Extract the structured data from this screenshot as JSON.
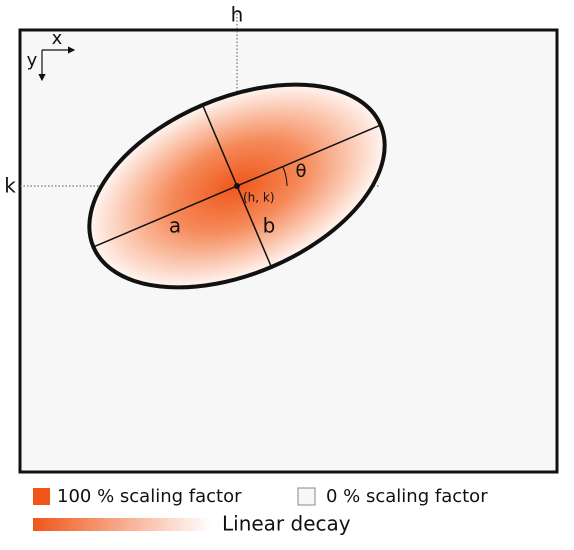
{
  "diagram": {
    "labels": {
      "h": "h",
      "k": "k",
      "x": "x",
      "y": "y",
      "a": "a",
      "b": "b",
      "theta": "θ",
      "center": "(h, k)"
    },
    "legend": {
      "full": "100 % scaling factor",
      "zero": "0 % scaling factor",
      "decay": "Linear decay"
    }
  }
}
